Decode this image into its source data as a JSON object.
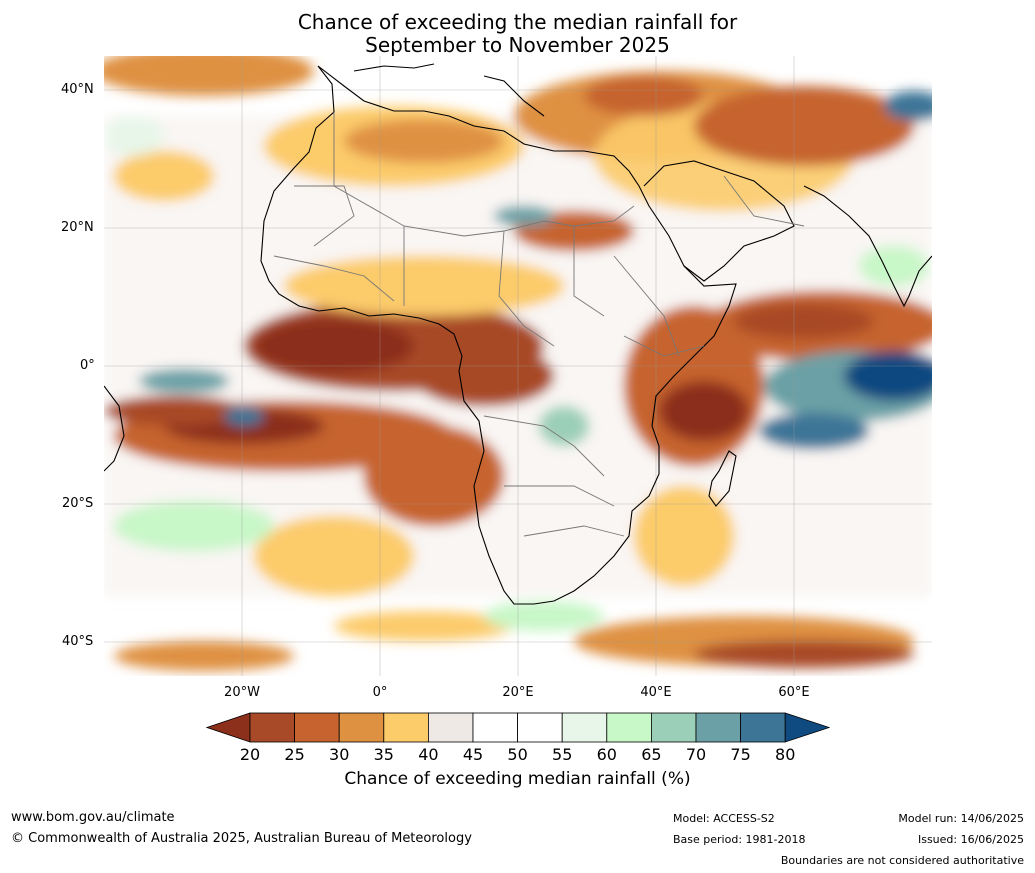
{
  "title_line1": "Chance of exceeding the median rainfall for",
  "title_line2": "September to November 2025",
  "lat_labels": [
    "40°N",
    "20°N",
    "0°",
    "20°S",
    "40°S"
  ],
  "lon_labels": [
    "20°W",
    "0°",
    "20°E",
    "40°E",
    "60°E"
  ],
  "colorbar": {
    "ticks": [
      "20",
      "25",
      "30",
      "35",
      "40",
      "45",
      "50",
      "55",
      "60",
      "65",
      "70",
      "75",
      "80"
    ],
    "colors": [
      "#8c2f1b",
      "#a84a27",
      "#c6632f",
      "#df9142",
      "#fccb6a",
      "#efe9e5",
      "#ffffff",
      "#ffffff",
      "#e7f6e8",
      "#c8f7c8",
      "#9ccfb7",
      "#6aa0a6",
      "#3d7597",
      "#0f4a80"
    ],
    "label": "Chance of exceeding median rainfall (%)"
  },
  "footer": {
    "url": "www.bom.gov.au/climate",
    "copyright": "© Commonwealth of Australia 2025, Australian Bureau of Meteorology",
    "model": "Model: ACCESS-S2",
    "base_period": "Base period: 1981-2018",
    "model_run": "Model run: 14/06/2025",
    "issued": "Issued: 16/06/2025",
    "disclaimer": "Boundaries are not considered authoritative"
  }
}
